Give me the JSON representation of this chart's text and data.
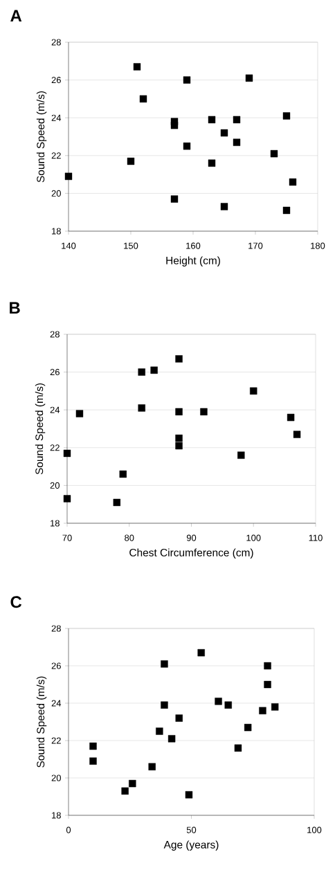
{
  "chart_data": [
    {
      "type": "scatter",
      "title": "A",
      "xlabel": "Height (cm)",
      "ylabel": "Sound Speed (m/s)",
      "color": "#000000",
      "marker": "square",
      "grid": "y",
      "x": [
        140,
        150,
        151,
        152,
        157,
        157,
        157,
        159,
        159,
        163,
        163,
        165,
        165,
        167,
        167,
        169,
        173,
        175,
        175,
        176
      ],
      "values": [
        20.9,
        21.7,
        26.7,
        25.0,
        23.8,
        23.6,
        19.7,
        26.0,
        22.5,
        23.9,
        21.6,
        23.2,
        19.3,
        23.9,
        22.7,
        26.1,
        22.1,
        24.1,
        19.1,
        20.6
      ],
      "xlim": [
        140,
        180
      ],
      "ylim": [
        18,
        28
      ],
      "xticks": [
        140,
        150,
        160,
        170,
        180
      ],
      "yticks": [
        18,
        20,
        22,
        24,
        26,
        28
      ]
    },
    {
      "type": "scatter",
      "title": "B",
      "xlabel": "Chest Circumference (cm)",
      "ylabel": "Sound Speed (m/s)",
      "color": "#000000",
      "marker": "square",
      "grid": "y",
      "x": [
        70,
        70,
        72,
        78,
        79,
        82,
        82,
        84,
        88,
        88,
        88,
        88,
        92,
        98,
        100,
        106,
        107
      ],
      "values": [
        21.7,
        19.3,
        23.8,
        19.1,
        20.6,
        26.0,
        24.1,
        26.1,
        26.7,
        23.9,
        22.5,
        22.1,
        23.9,
        21.6,
        25.0,
        23.6,
        22.7
      ],
      "xlim": [
        70,
        110
      ],
      "ylim": [
        18,
        28
      ],
      "xticks": [
        70,
        80,
        90,
        100,
        110
      ],
      "yticks": [
        18,
        20,
        22,
        24,
        26,
        28
      ]
    },
    {
      "type": "scatter",
      "title": "C",
      "xlabel": "Age (years)",
      "ylabel": "Sound Speed (m/s)",
      "color": "#000000",
      "marker": "square",
      "grid": "y",
      "x": [
        10,
        10,
        23,
        26,
        34,
        37,
        39,
        39,
        42,
        45,
        49,
        54,
        61,
        65,
        69,
        73,
        79,
        81,
        81,
        84
      ],
      "values": [
        21.7,
        20.9,
        19.3,
        19.7,
        20.6,
        22.5,
        26.1,
        23.9,
        22.1,
        23.2,
        19.1,
        26.7,
        24.1,
        23.9,
        21.6,
        22.7,
        23.6,
        26.0,
        25.0,
        23.8
      ],
      "xlim": [
        0,
        100
      ],
      "ylim": [
        18,
        28
      ],
      "xticks": [
        0,
        50,
        100
      ],
      "yticks": [
        18,
        20,
        22,
        24,
        26,
        28
      ]
    }
  ]
}
